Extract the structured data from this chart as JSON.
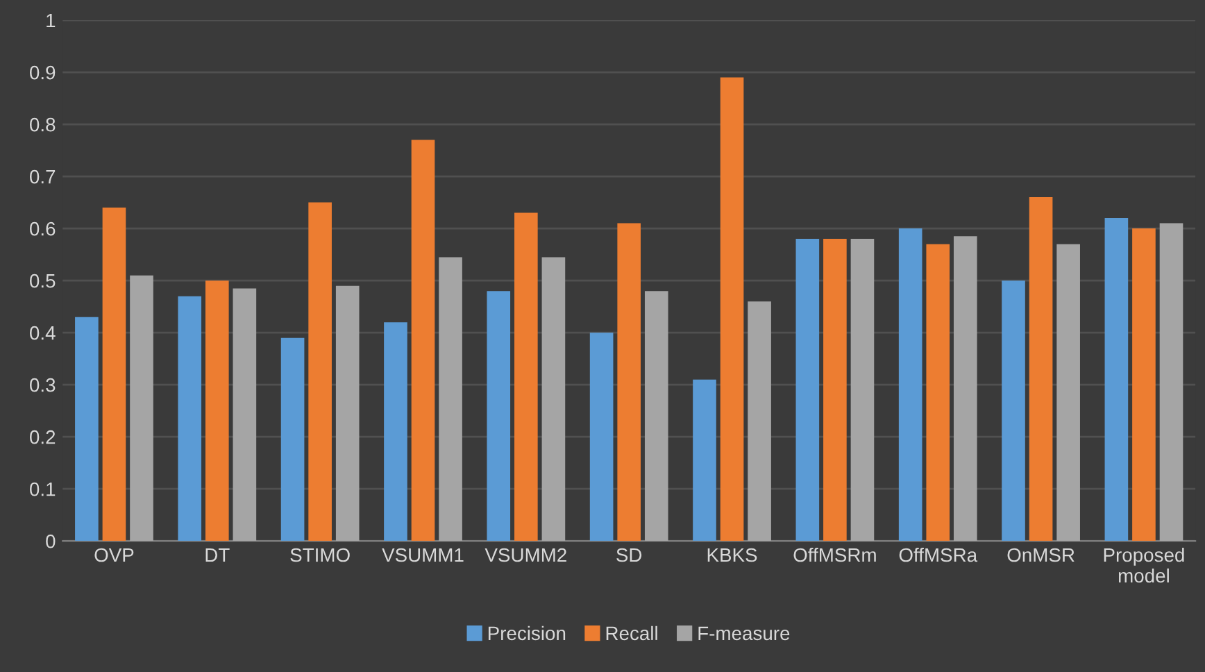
{
  "chart_data": {
    "type": "bar",
    "categories": [
      "OVP",
      "DT",
      "STIMO",
      "VSUMM1",
      "VSUMM2",
      "SD",
      "KBKS",
      "OffMSRm",
      "OffMSRa",
      "OnMSR",
      "Proposed\nmodel"
    ],
    "series": [
      {
        "name": "Precision",
        "color": "#5b9bd5",
        "values": [
          0.43,
          0.47,
          0.39,
          0.42,
          0.48,
          0.4,
          0.31,
          0.58,
          0.6,
          0.5,
          0.62
        ]
      },
      {
        "name": "Recall",
        "color": "#ed7d31",
        "values": [
          0.64,
          0.5,
          0.65,
          0.77,
          0.63,
          0.61,
          0.89,
          0.58,
          0.57,
          0.66,
          0.6
        ]
      },
      {
        "name": "F-measure",
        "color": "#a5a5a5",
        "values": [
          0.51,
          0.485,
          0.49,
          0.545,
          0.545,
          0.48,
          0.46,
          0.58,
          0.585,
          0.57,
          0.61
        ]
      }
    ],
    "ylim": [
      0,
      1
    ],
    "yticks": [
      0,
      0.1,
      0.2,
      0.3,
      0.4,
      0.5,
      0.6,
      0.7,
      0.8,
      0.9,
      1
    ],
    "grid": "y",
    "legend": "bottom"
  }
}
